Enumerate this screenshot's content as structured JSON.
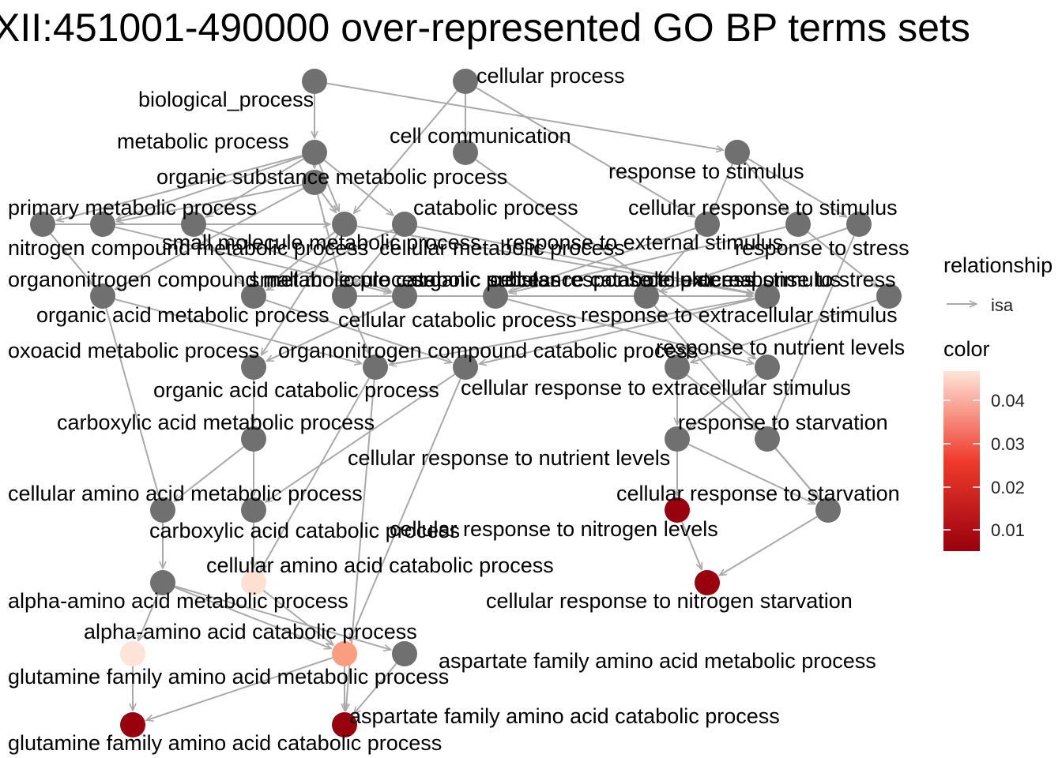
{
  "title": "XII:451001-490000 over-represented GO BP terms sets",
  "colors": {
    "edge": "#a9a9a9",
    "node_default": "#707070",
    "scale_low": "#99000d",
    "scale_mid": "#ef3b2c",
    "scale_high": "#fee5d9"
  },
  "legend": {
    "relationship_title": "relationship",
    "relationship_item": "isa",
    "color_title": "color",
    "color_ticks": [
      "0.04",
      "0.03",
      "0.02",
      "0.01"
    ]
  },
  "nodes": [
    {
      "id": "bp",
      "label": "biological_process",
      "fill": null
    },
    {
      "id": "cp",
      "label": "cellular process",
      "fill": null
    },
    {
      "id": "mp",
      "label": "metabolic process",
      "fill": null
    },
    {
      "id": "cc",
      "label": "cell communication",
      "fill": null
    },
    {
      "id": "rs",
      "label": "response to stimulus",
      "fill": null
    },
    {
      "id": "osmp",
      "label": "organic substance metabolic process",
      "fill": null
    },
    {
      "id": "pmp",
      "label": "primary metabolic process",
      "fill": null
    },
    {
      "id": "catp",
      "label": "catabolic process",
      "fill": null
    },
    {
      "id": "crs",
      "label": "cellular response to stimulus",
      "fill": null
    },
    {
      "id": "ncmp",
      "label": "nitrogen compound metabolic process",
      "fill": null
    },
    {
      "id": "smmp",
      "label": "small molecule metabolic process",
      "fill": null
    },
    {
      "id": "cmp",
      "label": "cellular metabolic process",
      "fill": null
    },
    {
      "id": "rtes",
      "label": "response to external stimulus",
      "fill": null
    },
    {
      "id": "rts",
      "label": "response to stress",
      "fill": null
    },
    {
      "id": "oncmp",
      "label": "organonitrogen compound metabolic process",
      "fill": null
    },
    {
      "id": "smcp",
      "label": "small molecule catabolic process",
      "fill": null
    },
    {
      "id": "orcp",
      "label": "organic substance catabolic process",
      "fill": null
    },
    {
      "id": "crtes",
      "label": "cellular response to external stimulus",
      "fill": null
    },
    {
      "id": "crts",
      "label": "cellular response to stress",
      "fill": null
    },
    {
      "id": "oamp",
      "label": "organic acid metabolic process",
      "fill": null
    },
    {
      "id": "ccp",
      "label": "cellular catabolic process",
      "fill": null
    },
    {
      "id": "rtexs",
      "label": "response to extracellular stimulus",
      "fill": null
    },
    {
      "id": "oxmp",
      "label": "oxoacid metabolic process",
      "fill": null
    },
    {
      "id": "onccp",
      "label": "organonitrogen compound catabolic process",
      "fill": null
    },
    {
      "id": "rtnl",
      "label": "response to nutrient levels",
      "fill": null
    },
    {
      "id": "oacp",
      "label": "organic acid catabolic process",
      "fill": null
    },
    {
      "id": "crtexs",
      "label": "cellular response to extracellular stimulus",
      "fill": null
    },
    {
      "id": "camp",
      "label": "carboxylic acid metabolic process",
      "fill": null
    },
    {
      "id": "rtst",
      "label": "response to starvation",
      "fill": null
    },
    {
      "id": "crtnl",
      "label": "cellular response to nutrient levels",
      "fill": null
    },
    {
      "id": "caamp",
      "label": "cellular amino acid metabolic process",
      "fill": null
    },
    {
      "id": "crtst",
      "label": "cellular response to starvation",
      "fill": null
    },
    {
      "id": "cacp",
      "label": "carboxylic acid catabolic process",
      "fill": null
    },
    {
      "id": "crtnitl",
      "label": "cellular response to nitrogen levels",
      "fill": "#99000d"
    },
    {
      "id": "caacp",
      "label": "cellular amino acid catabolic process",
      "fill": "#fde0d2"
    },
    {
      "id": "aaamp",
      "label": "alpha-amino acid metabolic process",
      "fill": null
    },
    {
      "id": "crtns",
      "label": "cellular response to nitrogen starvation",
      "fill": "#99000d"
    },
    {
      "id": "aaacp",
      "label": "alpha-amino acid catabolic process",
      "fill": "#fb9e80"
    },
    {
      "id": "afaamp",
      "label": "aspartate family amino acid metabolic process",
      "fill": null
    },
    {
      "id": "gfaamp",
      "label": "glutamine family amino acid metabolic process",
      "fill": "#fee3d8"
    },
    {
      "id": "afaacp",
      "label": "aspartate family amino acid catabolic process",
      "fill": "#99000d"
    },
    {
      "id": "gfaacp",
      "label": "glutamine family amino acid catabolic process",
      "fill": "#99000d"
    }
  ],
  "edges": [
    [
      "bp",
      "mp"
    ],
    [
      "bp",
      "rs"
    ],
    [
      "cp",
      "cc"
    ],
    [
      "cp",
      "crs"
    ],
    [
      "cp",
      "cmp"
    ],
    [
      "mp",
      "pmp"
    ],
    [
      "mp",
      "ncmp"
    ],
    [
      "mp",
      "osmp"
    ],
    [
      "mp",
      "catp"
    ],
    [
      "mp",
      "smmp"
    ],
    [
      "mp",
      "cmp"
    ],
    [
      "cc",
      "crtexs"
    ],
    [
      "rs",
      "crs"
    ],
    [
      "rs",
      "rtes"
    ],
    [
      "rs",
      "rts"
    ],
    [
      "osmp",
      "pmp"
    ],
    [
      "osmp",
      "orcp"
    ],
    [
      "osmp",
      "oncmp"
    ],
    [
      "osmp",
      "cmp"
    ],
    [
      "pmp",
      "oamp"
    ],
    [
      "ncmp",
      "oncmp"
    ],
    [
      "ncmp",
      "cmp"
    ],
    [
      "catp",
      "orcp"
    ],
    [
      "catp",
      "smcp"
    ],
    [
      "catp",
      "ccp"
    ],
    [
      "crs",
      "crtes"
    ],
    [
      "crs",
      "crts"
    ],
    [
      "smmp",
      "smcp"
    ],
    [
      "smmp",
      "oamp"
    ],
    [
      "cmp",
      "ccp"
    ],
    [
      "cmp",
      "smcp"
    ],
    [
      "cmp",
      "oxmp"
    ],
    [
      "rtes",
      "crtes"
    ],
    [
      "rtes",
      "rtexs"
    ],
    [
      "rts",
      "crts"
    ],
    [
      "rts",
      "rtst"
    ],
    [
      "oncmp",
      "onccp"
    ],
    [
      "oncmp",
      "caamp"
    ],
    [
      "smcp",
      "oacp"
    ],
    [
      "orcp",
      "onccp"
    ],
    [
      "orcp",
      "ccp"
    ],
    [
      "crtes",
      "crtexs"
    ],
    [
      "crts",
      "crtst"
    ],
    [
      "oamp",
      "oxmp"
    ],
    [
      "ccp",
      "oacp"
    ],
    [
      "ccp",
      "onccp"
    ],
    [
      "rtexs",
      "rtnl"
    ],
    [
      "oxmp",
      "camp"
    ],
    [
      "onccp",
      "caacp"
    ],
    [
      "onccp",
      "afaacp"
    ],
    [
      "rtnl",
      "crtnl"
    ],
    [
      "rtnl",
      "rtst"
    ],
    [
      "oacp",
      "cacp"
    ],
    [
      "oacp",
      "aaacp"
    ],
    [
      "crtexs",
      "crtnl"
    ],
    [
      "camp",
      "caamp"
    ],
    [
      "camp",
      "cacp"
    ],
    [
      "rtst",
      "crtst"
    ],
    [
      "crtnl",
      "crtnitl"
    ],
    [
      "crtnl",
      "crtst"
    ],
    [
      "caamp",
      "aaamp"
    ],
    [
      "crtst",
      "crtns"
    ],
    [
      "cacp",
      "caacp"
    ],
    [
      "crtnitl",
      "crtns"
    ],
    [
      "caacp",
      "aaacp"
    ],
    [
      "aaamp",
      "gfaamp"
    ],
    [
      "aaamp",
      "aaacp"
    ],
    [
      "aaamp",
      "afaamp"
    ],
    [
      "aaacp",
      "gfaacp"
    ],
    [
      "aaacp",
      "afaacp"
    ],
    [
      "afaamp",
      "afaacp"
    ],
    [
      "gfaamp",
      "gfaacp"
    ]
  ]
}
